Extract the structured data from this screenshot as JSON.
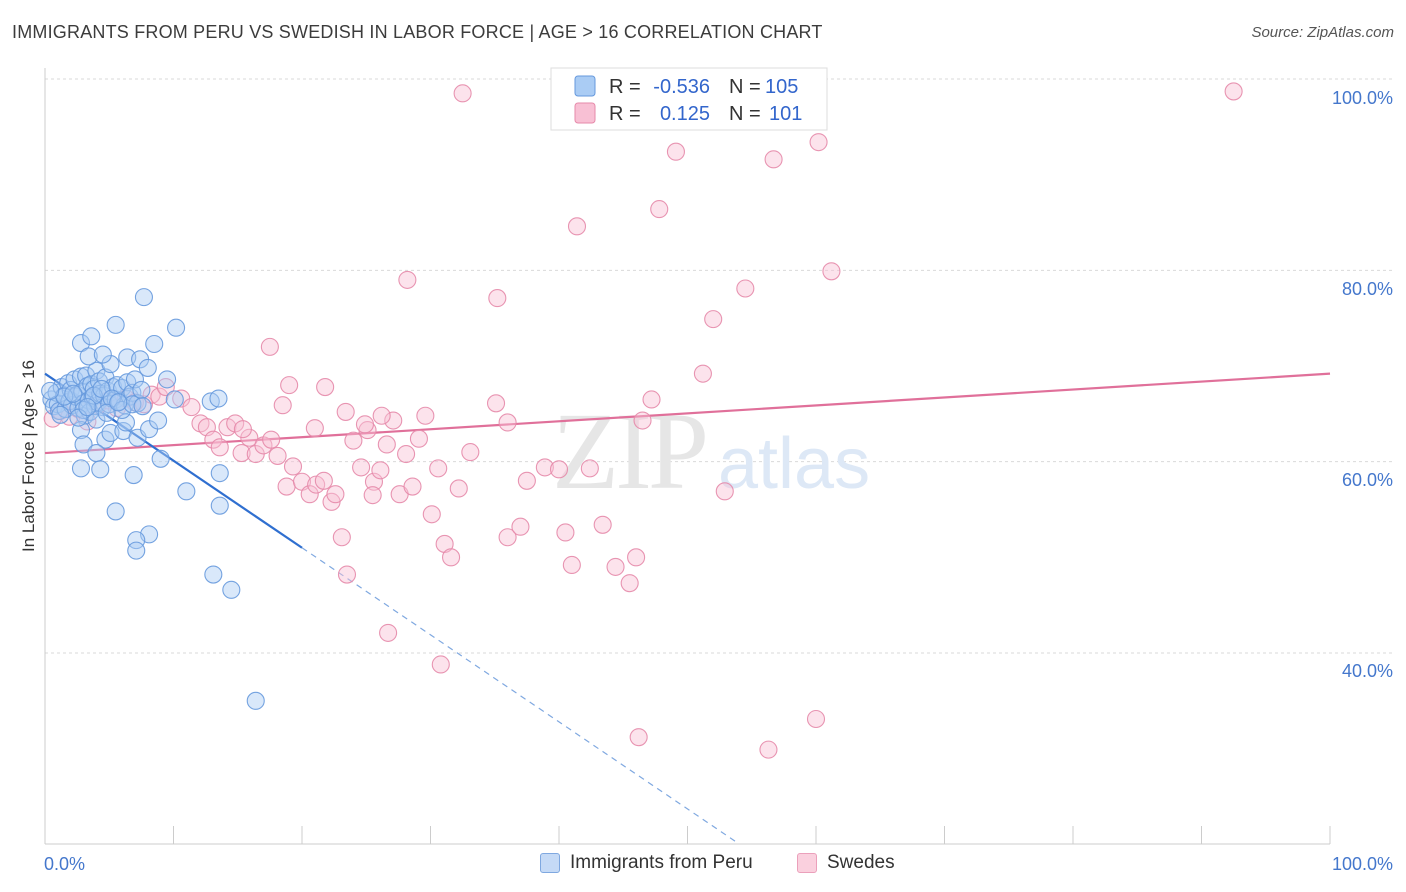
{
  "title": "IMMIGRANTS FROM PERU VS SWEDISH IN LABOR FORCE | AGE > 16 CORRELATION CHART",
  "source": "Source: ZipAtlas.com",
  "watermark": {
    "zip": "ZIP",
    "atlas": "atlas"
  },
  "legend": {
    "r_label": "R =",
    "n_label": "N =",
    "rows": [
      {
        "r": "-0.536",
        "n": "105",
        "color": "#aaccf4",
        "stroke": "#6699dd"
      },
      {
        "r": "0.125",
        "n": "101",
        "color": "#f8c0d4",
        "stroke": "#e68aaa"
      }
    ]
  },
  "bottom_legend": [
    {
      "label": "Immigrants from Peru",
      "color": "#c5daf6",
      "stroke": "#7fa8e0"
    },
    {
      "label": "Swedes",
      "color": "#fad0de",
      "stroke": "#eba0bb"
    }
  ],
  "chart_data": {
    "type": "scatter",
    "xlabel": "",
    "ylabel": "In Labor Force | Age > 16",
    "xlim": [
      0,
      100
    ],
    "ylim": [
      20,
      100
    ],
    "x_tick_labels": [
      "0.0%",
      "100.0%"
    ],
    "y_ticks": [
      40,
      60,
      80,
      100
    ],
    "y_tick_labels": [
      "40.0%",
      "60.0%",
      "80.0%",
      "100.0%"
    ],
    "grid": true,
    "series": [
      {
        "name": "Immigrants from Peru",
        "color": "#6699dd",
        "fill": "#aaccf4",
        "trend": {
          "x1": 0,
          "y1": 69.2,
          "x2": 20,
          "y2": 51.0,
          "dash_to_x": 54,
          "dash_to_y": 20
        },
        "points": [
          [
            0.5,
            66.5
          ],
          [
            0.7,
            65.8
          ],
          [
            0.9,
            67.2
          ],
          [
            1.0,
            66.0
          ],
          [
            1.1,
            65.3
          ],
          [
            1.3,
            67.8
          ],
          [
            1.5,
            66.9
          ],
          [
            1.6,
            65.5
          ],
          [
            1.8,
            68.2
          ],
          [
            1.9,
            66.3
          ],
          [
            2.0,
            67.5
          ],
          [
            2.1,
            65.9
          ],
          [
            2.3,
            68.6
          ],
          [
            2.4,
            66.8
          ],
          [
            2.5,
            67.0
          ],
          [
            2.6,
            65.6
          ],
          [
            2.8,
            68.9
          ],
          [
            2.9,
            67.3
          ],
          [
            3.0,
            66.1
          ],
          [
            3.1,
            64.8
          ],
          [
            3.2,
            69.0
          ],
          [
            3.3,
            67.9
          ],
          [
            3.4,
            66.4
          ],
          [
            3.5,
            65.2
          ],
          [
            3.6,
            68.1
          ],
          [
            3.7,
            66.7
          ],
          [
            3.8,
            67.6
          ],
          [
            3.9,
            65.8
          ],
          [
            4.0,
            69.5
          ],
          [
            4.1,
            66.2
          ],
          [
            4.2,
            68.4
          ],
          [
            4.3,
            67.1
          ],
          [
            4.5,
            65.7
          ],
          [
            4.6,
            66.9
          ],
          [
            4.7,
            68.8
          ],
          [
            4.9,
            67.4
          ],
          [
            5.0,
            66.0
          ],
          [
            5.1,
            70.2
          ],
          [
            5.3,
            67.8
          ],
          [
            5.5,
            66.5
          ],
          [
            5.6,
            68.0
          ],
          [
            5.8,
            66.3
          ],
          [
            6.0,
            67.7
          ],
          [
            6.2,
            65.9
          ],
          [
            6.4,
            68.3
          ],
          [
            6.6,
            66.8
          ],
          [
            6.8,
            67.2
          ],
          [
            7.0,
            68.6
          ],
          [
            7.2,
            66.1
          ],
          [
            7.5,
            67.5
          ],
          [
            2.8,
            72.4
          ],
          [
            3.4,
            71.0
          ],
          [
            3.6,
            73.1
          ],
          [
            4.5,
            71.2
          ],
          [
            5.5,
            74.3
          ],
          [
            6.4,
            70.9
          ],
          [
            7.4,
            70.7
          ],
          [
            8.0,
            69.8
          ],
          [
            8.5,
            72.3
          ],
          [
            9.5,
            68.6
          ],
          [
            7.7,
            77.2
          ],
          [
            10.2,
            74.0
          ],
          [
            2.8,
            63.3
          ],
          [
            4.0,
            64.4
          ],
          [
            4.7,
            62.3
          ],
          [
            5.1,
            63.0
          ],
          [
            6.1,
            63.2
          ],
          [
            6.3,
            64.1
          ],
          [
            7.2,
            62.5
          ],
          [
            8.1,
            63.4
          ],
          [
            8.8,
            64.3
          ],
          [
            9.0,
            60.3
          ],
          [
            3.0,
            61.8
          ],
          [
            4.0,
            60.9
          ],
          [
            2.8,
            59.3
          ],
          [
            4.3,
            59.2
          ],
          [
            6.9,
            58.6
          ],
          [
            10.1,
            66.5
          ],
          [
            12.9,
            66.3
          ],
          [
            13.5,
            66.6
          ],
          [
            11.0,
            56.9
          ],
          [
            13.6,
            55.4
          ],
          [
            5.5,
            54.8
          ],
          [
            8.1,
            52.4
          ],
          [
            7.1,
            51.8
          ],
          [
            7.1,
            50.7
          ],
          [
            13.1,
            48.2
          ],
          [
            14.5,
            46.6
          ],
          [
            16.4,
            35.0
          ],
          [
            13.6,
            58.8
          ],
          [
            1.5,
            66.8
          ],
          [
            2.2,
            67.1
          ],
          [
            3.0,
            65.4
          ],
          [
            3.8,
            66.9
          ],
          [
            4.4,
            67.6
          ],
          [
            5.2,
            66.6
          ],
          [
            6.0,
            65.4
          ],
          [
            6.8,
            66.0
          ],
          [
            7.6,
            65.8
          ],
          [
            1.2,
            64.9
          ],
          [
            2.6,
            64.6
          ],
          [
            3.3,
            65.7
          ],
          [
            4.8,
            65.1
          ],
          [
            5.7,
            66.2
          ],
          [
            0.4,
            67.4
          ]
        ]
      },
      {
        "name": "Swedes",
        "color": "#e68aaa",
        "fill": "#f8c0d4",
        "trend": {
          "x1": 0,
          "y1": 60.9,
          "x2": 100,
          "y2": 69.2
        },
        "points": [
          [
            0.6,
            64.5
          ],
          [
            1.2,
            65.3
          ],
          [
            1.9,
            64.7
          ],
          [
            2.6,
            65.5
          ],
          [
            3.3,
            64.2
          ],
          [
            4.1,
            65.9
          ],
          [
            4.9,
            66.4
          ],
          [
            5.6,
            65.6
          ],
          [
            6.3,
            66.6
          ],
          [
            7.0,
            66.2
          ],
          [
            7.7,
            66.0
          ],
          [
            8.3,
            67.0
          ],
          [
            8.9,
            66.8
          ],
          [
            9.4,
            67.8
          ],
          [
            10.6,
            66.6
          ],
          [
            11.4,
            65.7
          ],
          [
            12.1,
            64.0
          ],
          [
            12.6,
            63.6
          ],
          [
            13.1,
            62.3
          ],
          [
            13.6,
            61.5
          ],
          [
            14.2,
            63.6
          ],
          [
            14.8,
            64.0
          ],
          [
            15.3,
            60.9
          ],
          [
            15.9,
            62.5
          ],
          [
            16.4,
            60.8
          ],
          [
            17.0,
            61.7
          ],
          [
            17.6,
            62.3
          ],
          [
            18.1,
            60.6
          ],
          [
            18.8,
            57.4
          ],
          [
            19.3,
            59.5
          ],
          [
            20.0,
            57.9
          ],
          [
            20.6,
            56.6
          ],
          [
            21.1,
            57.6
          ],
          [
            21.7,
            58.0
          ],
          [
            22.3,
            55.8
          ],
          [
            22.6,
            56.6
          ],
          [
            23.1,
            52.1
          ],
          [
            23.5,
            48.2
          ],
          [
            24.0,
            62.2
          ],
          [
            24.6,
            59.4
          ],
          [
            25.1,
            63.3
          ],
          [
            25.6,
            57.9
          ],
          [
            26.1,
            59.1
          ],
          [
            26.6,
            61.8
          ],
          [
            27.1,
            64.3
          ],
          [
            27.6,
            56.6
          ],
          [
            28.1,
            60.8
          ],
          [
            28.6,
            57.4
          ],
          [
            29.1,
            62.4
          ],
          [
            29.6,
            64.8
          ],
          [
            30.1,
            54.5
          ],
          [
            30.6,
            59.3
          ],
          [
            31.1,
            51.4
          ],
          [
            31.6,
            50.0
          ],
          [
            32.2,
            57.2
          ],
          [
            33.1,
            61.0
          ],
          [
            35.1,
            66.1
          ],
          [
            36.0,
            64.1
          ],
          [
            37.5,
            58.0
          ],
          [
            38.9,
            59.4
          ],
          [
            40.0,
            59.2
          ],
          [
            40.5,
            52.6
          ],
          [
            41.0,
            49.2
          ],
          [
            42.4,
            59.3
          ],
          [
            43.4,
            53.4
          ],
          [
            44.4,
            49.0
          ],
          [
            45.5,
            47.3
          ],
          [
            46.0,
            50.0
          ],
          [
            46.2,
            31.2
          ],
          [
            28.2,
            79.0
          ],
          [
            35.2,
            77.1
          ],
          [
            41.4,
            84.6
          ],
          [
            47.8,
            86.4
          ],
          [
            49.1,
            92.4
          ],
          [
            52.0,
            74.9
          ],
          [
            54.5,
            78.1
          ],
          [
            56.7,
            91.6
          ],
          [
            60.2,
            93.4
          ],
          [
            61.2,
            79.9
          ],
          [
            32.5,
            98.5
          ],
          [
            92.5,
            98.7
          ],
          [
            56.3,
            29.9
          ],
          [
            51.2,
            69.2
          ],
          [
            47.2,
            66.5
          ],
          [
            46.5,
            64.3
          ],
          [
            21.0,
            63.5
          ],
          [
            17.5,
            72.0
          ],
          [
            25.5,
            56.5
          ],
          [
            19.0,
            68.0
          ],
          [
            26.7,
            42.1
          ],
          [
            30.8,
            38.8
          ],
          [
            36.0,
            52.1
          ],
          [
            37.0,
            53.2
          ],
          [
            52.9,
            56.9
          ],
          [
            21.8,
            67.8
          ],
          [
            23.4,
            65.2
          ],
          [
            24.9,
            63.9
          ],
          [
            26.2,
            64.8
          ],
          [
            18.5,
            65.9
          ],
          [
            15.4,
            63.4
          ],
          [
            60.0,
            33.1
          ]
        ]
      }
    ]
  }
}
